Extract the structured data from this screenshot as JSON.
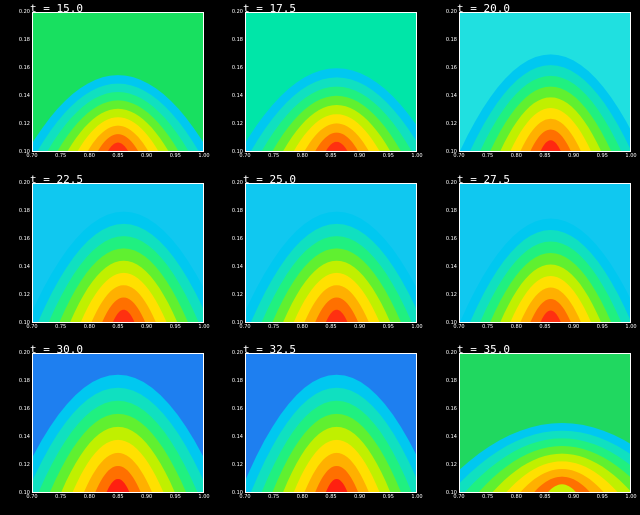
{
  "chart_data": [
    {
      "type": "heatmap",
      "title": "t = 15.0",
      "xlim": [
        0.7,
        1.0
      ],
      "ylim": [
        0.1,
        0.2
      ],
      "xticks": [
        "0.70",
        "0.75",
        "0.80",
        "0.85",
        "0.90",
        "0.95",
        "1.00"
      ],
      "yticks": [
        "0.10",
        "0.12",
        "0.14",
        "0.16",
        "0.18",
        "0.20"
      ],
      "bg": "#18e060",
      "peak": "#ff3010",
      "peak_x": 0.85,
      "peak_height": 0.055,
      "spread": 0.16
    },
    {
      "type": "heatmap",
      "title": "t = 17.5",
      "xlim": [
        0.7,
        1.0
      ],
      "ylim": [
        0.1,
        0.2
      ],
      "xticks": [
        "0.70",
        "0.75",
        "0.80",
        "0.85",
        "0.90",
        "0.95",
        "1.00"
      ],
      "yticks": [
        "0.10",
        "0.12",
        "0.14",
        "0.16",
        "0.18",
        "0.20"
      ],
      "bg": "#00e6a8",
      "peak": "#ff3010",
      "peak_x": 0.86,
      "peak_height": 0.06,
      "spread": 0.17
    },
    {
      "type": "heatmap",
      "title": "t = 20.0",
      "xlim": [
        0.7,
        1.0
      ],
      "ylim": [
        0.1,
        0.2
      ],
      "xticks": [
        "0.70",
        "0.75",
        "0.80",
        "0.85",
        "0.90",
        "0.95",
        "1.00"
      ],
      "yticks": [
        "0.10",
        "0.12",
        "0.14",
        "0.16",
        "0.18",
        "0.20"
      ],
      "bg": "#20e0e0",
      "peak": "#ff2810",
      "peak_x": 0.86,
      "peak_height": 0.07,
      "spread": 0.16
    },
    {
      "type": "heatmap",
      "title": "t = 22.5",
      "xlim": [
        0.7,
        1.0
      ],
      "ylim": [
        0.1,
        0.2
      ],
      "xticks": [
        "0.70",
        "0.75",
        "0.80",
        "0.85",
        "0.90",
        "0.95",
        "1.00"
      ],
      "yticks": [
        "0.10",
        "0.12",
        "0.14",
        "0.16",
        "0.18",
        "0.20"
      ],
      "bg": "#10c8f0",
      "peak": "#ff3010",
      "peak_x": 0.86,
      "peak_height": 0.08,
      "spread": 0.17
    },
    {
      "type": "heatmap",
      "title": "t = 25.0",
      "xlim": [
        0.7,
        1.0
      ],
      "ylim": [
        0.1,
        0.2
      ],
      "xticks": [
        "0.70",
        "0.75",
        "0.80",
        "0.85",
        "0.90",
        "0.95",
        "1.00"
      ],
      "yticks": [
        "0.10",
        "0.12",
        "0.14",
        "0.16",
        "0.18",
        "0.20"
      ],
      "bg": "#10c8f0",
      "peak": "#ff3010",
      "peak_x": 0.86,
      "peak_height": 0.08,
      "spread": 0.17
    },
    {
      "type": "heatmap",
      "title": "t = 27.5",
      "xlim": [
        0.7,
        1.0
      ],
      "ylim": [
        0.1,
        0.2
      ],
      "xticks": [
        "0.70",
        "0.75",
        "0.80",
        "0.85",
        "0.90",
        "0.95",
        "1.00"
      ],
      "yticks": [
        "0.10",
        "0.12",
        "0.14",
        "0.16",
        "0.18",
        "0.20"
      ],
      "bg": "#10c8f0",
      "peak": "#ff3010",
      "peak_x": 0.86,
      "peak_height": 0.075,
      "spread": 0.16
    },
    {
      "type": "heatmap",
      "title": "t = 30.0",
      "xlim": [
        0.7,
        1.0
      ],
      "ylim": [
        0.1,
        0.2
      ],
      "xticks": [
        "0.70",
        "0.75",
        "0.80",
        "0.85",
        "0.90",
        "0.95",
        "1.00"
      ],
      "yticks": [
        "0.10",
        "0.12",
        "0.14",
        "0.16",
        "0.18",
        "0.20"
      ],
      "bg": "#1e7ff0",
      "peak": "#ff2010",
      "peak_x": 0.85,
      "peak_height": 0.085,
      "spread": 0.18
    },
    {
      "type": "heatmap",
      "title": "t = 32.5",
      "xlim": [
        0.7,
        1.0
      ],
      "ylim": [
        0.1,
        0.2
      ],
      "xticks": [
        "0.70",
        "0.75",
        "0.80",
        "0.85",
        "0.90",
        "0.95",
        "1.00"
      ],
      "yticks": [
        "0.10",
        "0.12",
        "0.14",
        "0.16",
        "0.18",
        "0.20"
      ],
      "bg": "#1e7ff0",
      "peak": "#ff2010",
      "peak_x": 0.86,
      "peak_height": 0.085,
      "spread": 0.17
    },
    {
      "type": "heatmap",
      "title": "t = 35.0",
      "xlim": [
        0.7,
        1.0
      ],
      "ylim": [
        0.1,
        0.2
      ],
      "xticks": [
        "0.70",
        "0.75",
        "0.80",
        "0.85",
        "0.90",
        "0.95",
        "1.00"
      ],
      "yticks": [
        "0.10",
        "0.12",
        "0.14",
        "0.16",
        "0.18",
        "0.20"
      ],
      "bg": "#20d860",
      "peak": "#c8f000",
      "peak_x": 0.88,
      "peak_height": 0.05,
      "spread": 0.22
    }
  ]
}
